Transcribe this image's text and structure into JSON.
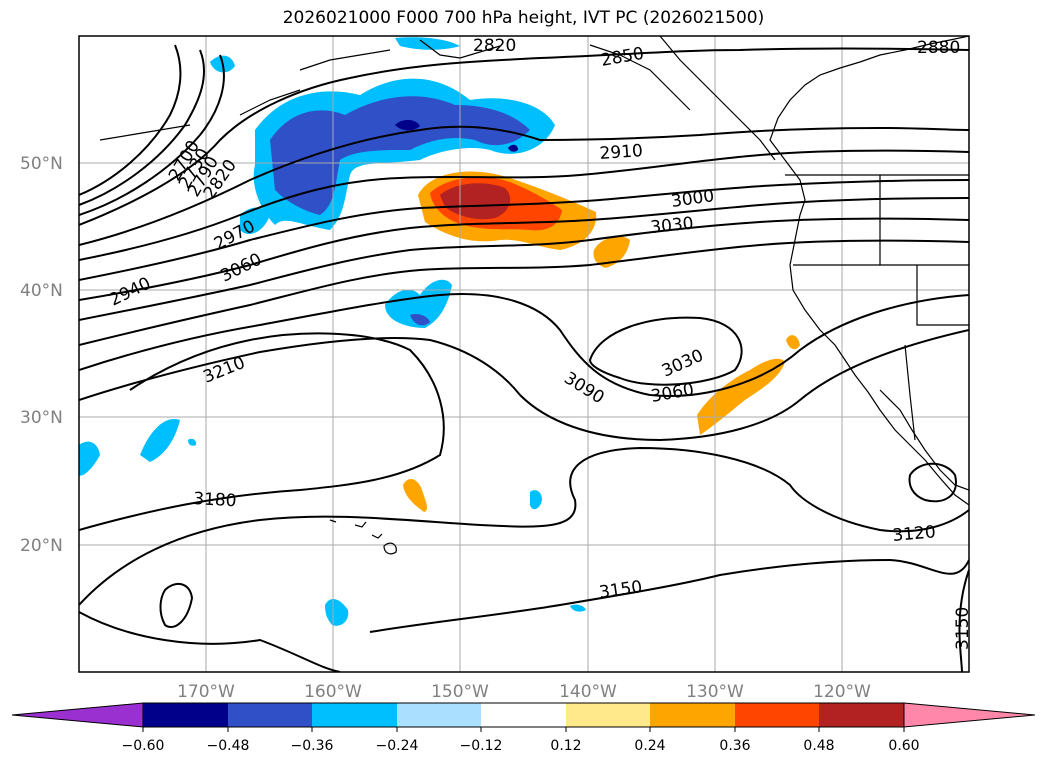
{
  "title": "2026021000 F000 700 hPa height, IVT PC (2026021500)",
  "map": {
    "lat_labels": [
      "50°N",
      "40°N",
      "30°N",
      "20°N"
    ],
    "lon_labels": [
      "170°W",
      "160°W",
      "150°W",
      "140°W",
      "130°W",
      "120°W"
    ],
    "contour_labels": [
      "2820",
      "2850",
      "2880",
      "2910",
      "3000",
      "3030",
      "2970",
      "3060",
      "2940",
      "3210",
      "3030",
      "3060",
      "3090",
      "3180",
      "3120",
      "3150",
      "3150",
      "2700",
      "2730",
      "2790",
      "2820"
    ]
  },
  "colorbar": {
    "ticks": [
      "−0.60",
      "−0.48",
      "−0.36",
      "−0.24",
      "−0.12",
      "0.12",
      "0.24",
      "0.36",
      "0.48",
      "0.60"
    ],
    "colors": [
      "#9b30d0",
      "#00008b",
      "#3050c8",
      "#00bfff",
      "#aadfff",
      "#ffffff",
      "#ffe98a",
      "#ffa500",
      "#ff4500",
      "#b22222",
      "#ff88aa"
    ]
  }
}
